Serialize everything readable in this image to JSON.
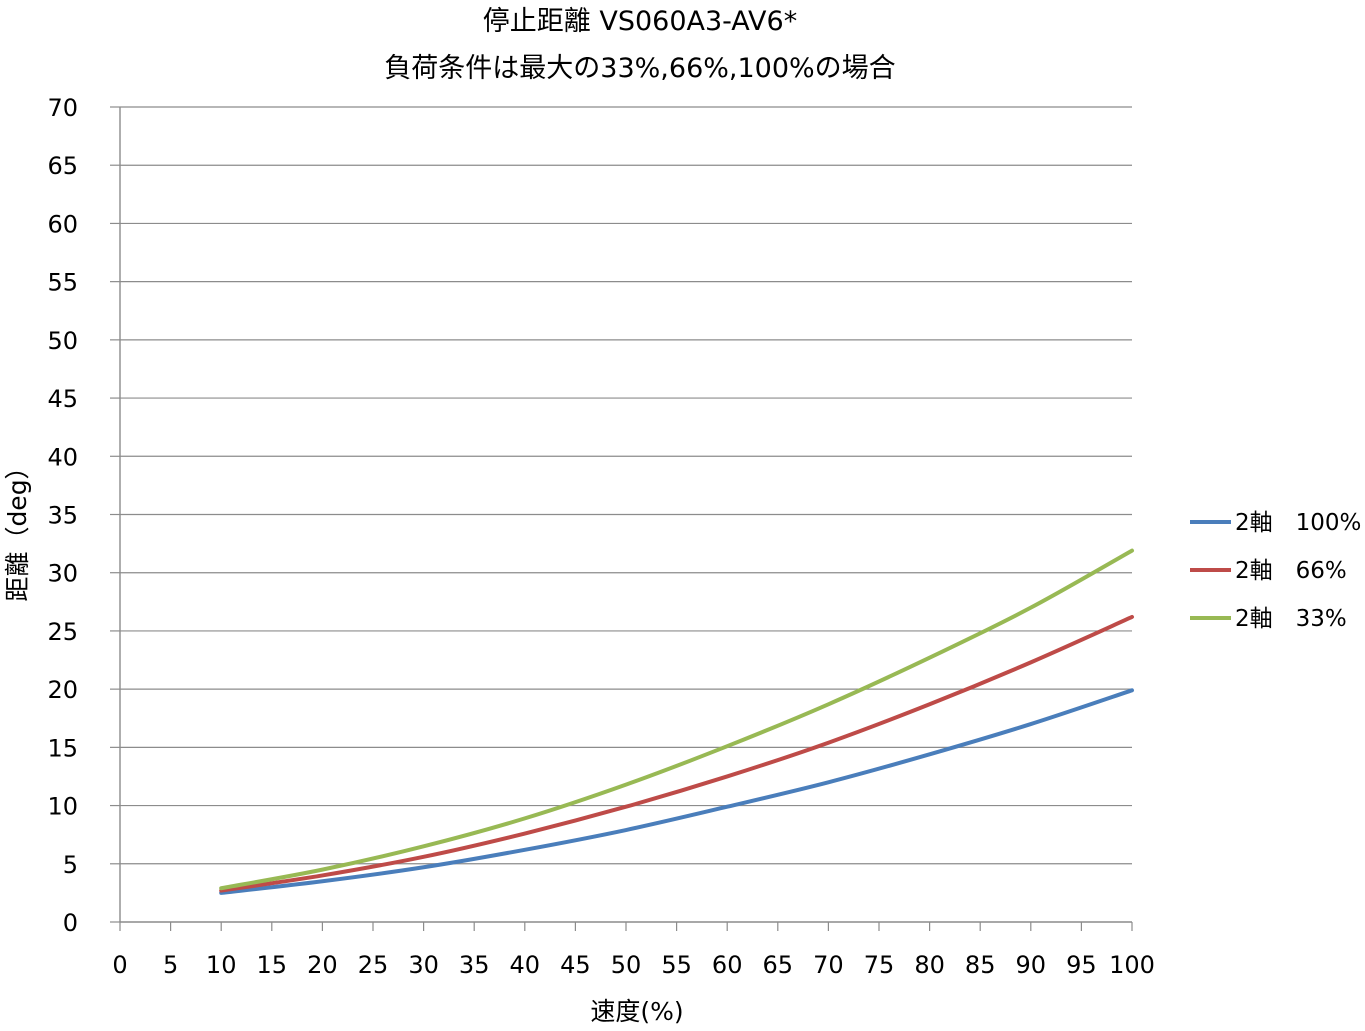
{
  "chart_data": {
    "type": "line",
    "title": [
      "停止距離 VS060A3-AV6*",
      "負荷条件は最大の33%,66%,100%の場合"
    ],
    "xlabel": "速度(%)",
    "ylabel": "距離（deg）",
    "xlim": [
      0,
      100
    ],
    "ylim": [
      0,
      70
    ],
    "x_ticks": [
      0,
      5,
      10,
      15,
      20,
      25,
      30,
      35,
      40,
      45,
      50,
      55,
      60,
      65,
      70,
      75,
      80,
      85,
      90,
      95,
      100
    ],
    "y_ticks": [
      0,
      5,
      10,
      15,
      20,
      25,
      30,
      35,
      40,
      45,
      50,
      55,
      60,
      65,
      70
    ],
    "grid": "horizontal",
    "legend_position": "right",
    "x": [
      10,
      20,
      30,
      40,
      50,
      60,
      70,
      80,
      90,
      100
    ],
    "series": [
      {
        "name": "2軸　100%",
        "color": "#4a7ebb",
        "values": [
          2.5,
          3.5,
          4.7,
          6.2,
          7.9,
          9.9,
          12.0,
          14.4,
          17.0,
          19.9
        ]
      },
      {
        "name": "2軸　66%",
        "color": "#be4b48",
        "values": [
          2.7,
          4.0,
          5.6,
          7.6,
          9.9,
          12.5,
          15.4,
          18.7,
          22.3,
          26.2
        ]
      },
      {
        "name": "2軸　33%",
        "color": "#98b954",
        "values": [
          2.9,
          4.5,
          6.5,
          8.9,
          11.8,
          15.1,
          18.7,
          22.7,
          27.0,
          31.9
        ]
      }
    ]
  }
}
